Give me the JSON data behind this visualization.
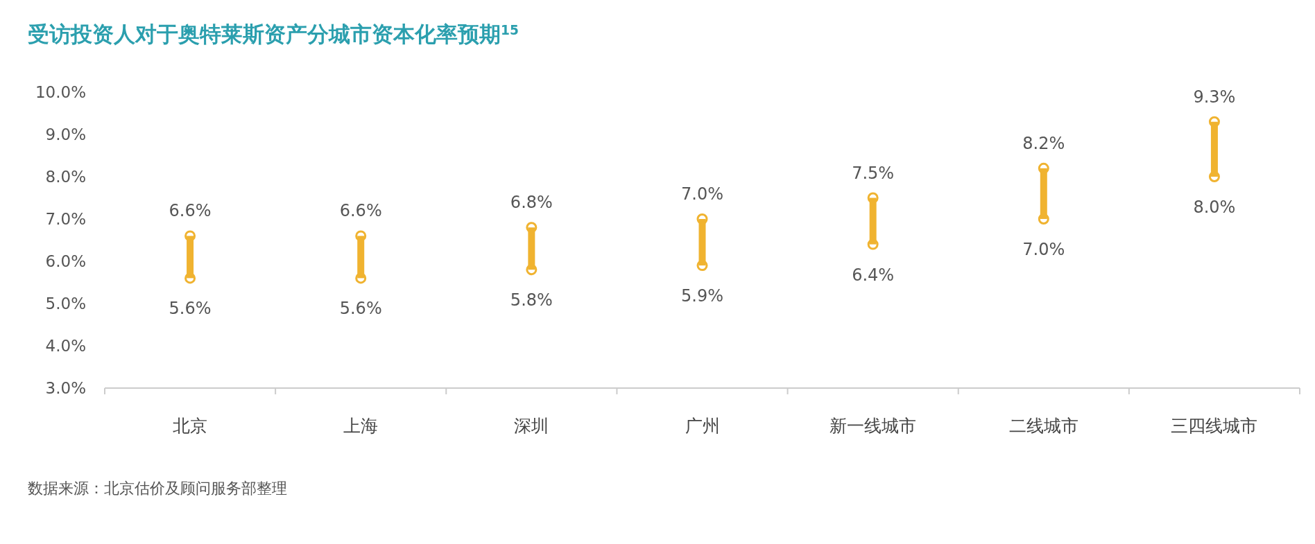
{
  "chart_data": {
    "type": "bar",
    "title": "受访投资人对于奥特莱斯资产分城市资本化率预期$^{15}$",
    "categories": [
      "北京",
      "上海",
      "深圳",
      "广州",
      "新一线城市",
      "二线城市",
      "三四线城市"
    ],
    "base": [
      5.6,
      5.6,
      5.8,
      5.9,
      6.4,
      7.0,
      8.0
    ],
    "values": [
      1.0,
      1.0,
      1.0,
      1.1,
      1.1,
      1.2,
      1.3
    ],
    "color": "#f0b330",
    "marker": "circle",
    "ylim": [
      3,
      10
    ],
    "yticks": [
      {
        "value": 3,
        "label": "3.0%"
      },
      {
        "value": 4,
        "label": "4.0%"
      },
      {
        "value": 5,
        "label": "5.0%"
      },
      {
        "value": 6,
        "label": "6.0%"
      },
      {
        "value": 7,
        "label": "7.0%"
      },
      {
        "value": 8,
        "label": "8.0%"
      },
      {
        "value": 9,
        "label": "9.0%"
      },
      {
        "value": 10,
        "label": "10.0%"
      }
    ],
    "annotations": [
      {
        "text": "6.6%",
        "x": "北京",
        "y": 6.6
      },
      {
        "text": "5.6%",
        "x": "北京",
        "y": 5.6
      },
      {
        "text": "6.6%",
        "x": "上海",
        "y": 6.6
      },
      {
        "text": "5.6%",
        "x": "上海",
        "y": 5.6
      },
      {
        "text": "6.8%",
        "x": "深圳",
        "y": 6.8
      },
      {
        "text": "5.8%",
        "x": "深圳",
        "y": 5.8
      },
      {
        "text": "7.0%",
        "x": "广州",
        "y": 7.0
      },
      {
        "text": "5.9%",
        "x": "广州",
        "y": 5.9
      },
      {
        "text": "7.5%",
        "x": "新一线城市",
        "y": 7.5
      },
      {
        "text": "6.4%",
        "x": "新一线城市",
        "y": 6.4
      },
      {
        "text": "8.2%",
        "x": "二线城市",
        "y": 8.2
      },
      {
        "text": "7.0%",
        "x": "二线城市",
        "y": 7.0
      },
      {
        "text": "9.3%",
        "x": "三四线城市",
        "y": 9.3
      },
      {
        "text": "8.0%",
        "x": "三四线城市",
        "y": 8.0
      },
      "数据来源：北京估价及顾问服务部整理"
    ]
  }
}
